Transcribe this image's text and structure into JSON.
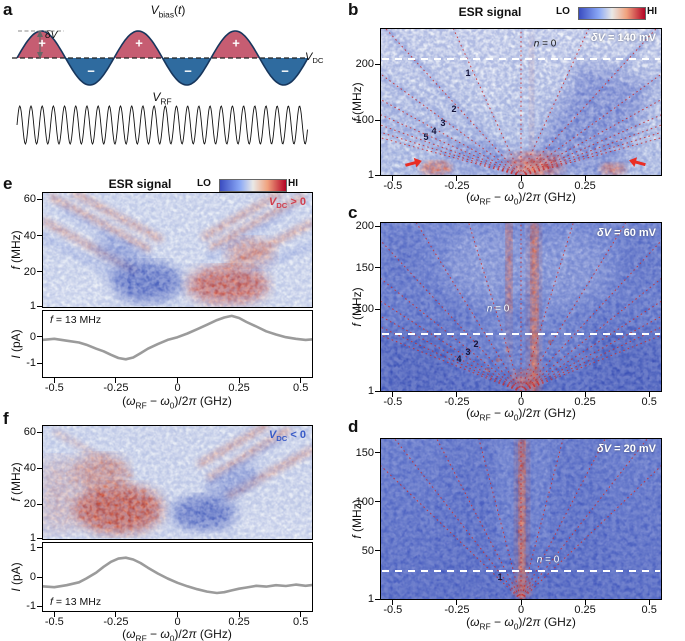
{
  "figure": {
    "type": "scientific-figure",
    "panels": [
      "a",
      "b",
      "c",
      "d",
      "e",
      "f"
    ]
  },
  "colors": {
    "colormap_lo": "#3a4cc0",
    "colormap_hi": "#b40426",
    "fan_line": "#cc2a2a",
    "vdc_positive_label": "#d04050",
    "vdc_negative_label": "#3a5cc8",
    "curve": "#9b9b9b",
    "wave_positive_fill": "#c65d72",
    "wave_negative_fill": "#2f6b9f"
  },
  "shared": {
    "esr_title": "ESR signal",
    "lo": "LO",
    "hi": "HI",
    "x_axis_label": [
      {
        "t": "("
      },
      {
        "t": "ω",
        "i": true
      },
      {
        "t": "RF",
        "s": true
      },
      {
        "t": " − "
      },
      {
        "t": "ω",
        "i": true
      },
      {
        "t": "0",
        "s": true
      },
      {
        "t": ")/2"
      },
      {
        "t": "π",
        "i": true
      },
      {
        "t": " (GHz)"
      }
    ],
    "f_axis_label": [
      {
        "t": "f",
        "i": true
      },
      {
        "t": " (MHz)"
      }
    ],
    "i_axis_label": [
      {
        "t": "I",
        "i": true
      },
      {
        "t": " (pA)"
      }
    ],
    "f13_label": [
      {
        "t": "f",
        "i": true
      },
      {
        "t": " = 13 MHz"
      }
    ]
  },
  "panel_a": {
    "letter": "a",
    "vbias_label": [
      {
        "t": "V",
        "i": true
      },
      {
        "t": "bias",
        "s": true
      },
      {
        "t": "("
      },
      {
        "t": "t",
        "i": true
      },
      {
        "t": ")"
      }
    ],
    "vdc_label": [
      {
        "t": "V",
        "i": true
      },
      {
        "t": "DC",
        "s": true
      }
    ],
    "vrf_label": [
      {
        "t": "V",
        "i": true
      },
      {
        "t": "RF",
        "s": true
      }
    ],
    "delta_v_label": [
      {
        "t": "δ",
        "i": true
      },
      {
        "t": "V",
        "i": true
      }
    ],
    "plus": "+",
    "minus": "−"
  },
  "panel_b": {
    "letter": "b",
    "delta_v_text": [
      {
        "t": "δ",
        "i": true
      },
      {
        "t": "V",
        "i": true
      },
      {
        "t": " = 140 mV"
      }
    ],
    "n0_label": [
      {
        "t": "n",
        "i": true
      },
      {
        "t": " = 0"
      }
    ],
    "fan_labels": [
      "1",
      "2",
      "3",
      "4",
      "5"
    ],
    "yticks": [
      "200",
      "100",
      "1"
    ],
    "xticks": [
      "-0.5",
      "-0.25",
      "0",
      "0.25"
    ],
    "chart_data": {
      "type": "heatmap",
      "x_axis": "(ωRF − ω0)/2π (GHz)",
      "x_range_ghz": [
        -0.55,
        0.55
      ],
      "y_axis": "f (MHz)",
      "f_range_mhz": [
        1,
        265
      ],
      "delta_v_mv": 140,
      "dashed_line_f_mhz": 210,
      "fan_n": [
        0,
        1,
        2,
        3,
        4,
        5,
        6,
        7,
        8
      ],
      "sidebands": "resonances at detuning = ±n·f (red dotted fan lines)",
      "features": "strong low-f red response spots near ±0.33 GHz marked by red arrows; red region near zero detuning; dark blue sideband fans on light background"
    }
  },
  "panel_c": {
    "letter": "c",
    "delta_v_text": [
      {
        "t": "δ",
        "i": true
      },
      {
        "t": "V",
        "i": true
      },
      {
        "t": " = 60 mV"
      }
    ],
    "n0_label": [
      {
        "t": "n",
        "i": true
      },
      {
        "t": " = 0"
      }
    ],
    "fan_labels": [
      "2",
      "3",
      "4"
    ],
    "yticks": [
      "200",
      "150",
      "100",
      "1"
    ],
    "xticks": [
      "-0.5",
      "-0.25",
      "0",
      "0.25",
      "0.5"
    ],
    "chart_data": {
      "type": "heatmap",
      "x_range_ghz": [
        -0.55,
        0.55
      ],
      "f_range_mhz": [
        1,
        205
      ],
      "delta_v_mv": 60,
      "dashed_line_f_mhz": 70,
      "fan_n": [
        0,
        1,
        2,
        3,
        4,
        5,
        6,
        7,
        8
      ],
      "sidebands": "resonances at detuning = ±n·f",
      "features": "bright red vertical streak just right of zero detuning over blue background; weaker streak left of zero; red spot at low f near zero"
    }
  },
  "panel_d": {
    "letter": "d",
    "delta_v_text": [
      {
        "t": "δ",
        "i": true
      },
      {
        "t": "V",
        "i": true
      },
      {
        "t": " = 20 mV"
      }
    ],
    "n0_label": [
      {
        "t": "n",
        "i": true
      },
      {
        "t": " = 0"
      }
    ],
    "fan_labels": [
      "1"
    ],
    "yticks": [
      "150",
      "100",
      "50",
      "1"
    ],
    "xticks": [
      "-0.5",
      "-0.25",
      "0",
      "0.25",
      "0.5"
    ],
    "chart_data": {
      "type": "heatmap",
      "x_range_ghz": [
        -0.55,
        0.55
      ],
      "f_range_mhz": [
        1,
        165
      ],
      "delta_v_mv": 20,
      "dashed_line_f_mhz": 30,
      "fan_n": [
        0,
        1,
        2,
        3,
        4
      ],
      "sidebands": "resonances at detuning = ±n·f",
      "features": "single narrow bright red vertical streak at zero detuning on blue background"
    }
  },
  "panel_e": {
    "letter": "e",
    "vdc_text": [
      {
        "t": "V",
        "i": true
      },
      {
        "t": "DC",
        "s": true
      },
      {
        "t": " > 0"
      }
    ],
    "yticks": [
      "60",
      "40",
      "20",
      "1"
    ],
    "chart_data": {
      "type": "heatmap",
      "x_range_ghz": [
        -0.55,
        0.55
      ],
      "f_range_mhz": [
        1,
        64
      ],
      "bias": "VDC > 0",
      "features": "large red lobe near +0.2 GHz at low f, dark blue dip near −0.15 GHz, tilted red/blue sideband stripes at high f"
    },
    "line_chart_data": {
      "type": "line",
      "f_mhz": 13,
      "ylim": [
        -1.55,
        1.0
      ],
      "yticks": [
        "0",
        "-1"
      ],
      "xticks": [
        "-0.5",
        "-0.25",
        "0",
        "0.25",
        "0.5"
      ],
      "x_ghz": [
        -0.55,
        -0.5,
        -0.45,
        -0.4,
        -0.37,
        -0.33,
        -0.3,
        -0.27,
        -0.24,
        -0.21,
        -0.18,
        -0.15,
        -0.12,
        -0.08,
        -0.04,
        0,
        0.04,
        0.08,
        0.12,
        0.16,
        0.19,
        0.22,
        0.25,
        0.28,
        0.32,
        0.36,
        0.4,
        0.44,
        0.48,
        0.52,
        0.55
      ],
      "i_pa": [
        -0.12,
        -0.08,
        -0.15,
        -0.22,
        -0.3,
        -0.45,
        -0.55,
        -0.68,
        -0.8,
        -0.85,
        -0.78,
        -0.62,
        -0.45,
        -0.28,
        -0.12,
        -0.02,
        0.12,
        0.28,
        0.45,
        0.62,
        0.72,
        0.78,
        0.7,
        0.55,
        0.38,
        0.2,
        0.08,
        -0.02,
        -0.08,
        -0.12,
        -0.1
      ]
    }
  },
  "panel_f": {
    "letter": "f",
    "vdc_text": [
      {
        "t": "V",
        "i": true
      },
      {
        "t": "DC",
        "s": true
      },
      {
        "t": " < 0"
      }
    ],
    "yticks": [
      "60",
      "40",
      "20",
      "1"
    ],
    "chart_data": {
      "type": "heatmap",
      "x_range_ghz": [
        -0.55,
        0.55
      ],
      "f_range_mhz": [
        1,
        64
      ],
      "bias": "VDC < 0",
      "features": "large red lobe near −0.25 GHz, dark blue dip near +0.1 GHz, tilted red stripes at high f on right side"
    },
    "line_chart_data": {
      "type": "line",
      "f_mhz": 13,
      "ylim": [
        -1.2,
        1.2
      ],
      "yticks": [
        "1",
        "0",
        "-1"
      ],
      "xticks": [
        "-0.5",
        "-0.25",
        "0",
        "0.25",
        "0.5"
      ],
      "x_ghz": [
        -0.55,
        -0.5,
        -0.45,
        -0.4,
        -0.37,
        -0.33,
        -0.3,
        -0.27,
        -0.24,
        -0.21,
        -0.18,
        -0.15,
        -0.12,
        -0.08,
        -0.04,
        0,
        0.04,
        0.08,
        0.12,
        0.16,
        0.19,
        0.22,
        0.25,
        0.28,
        0.32,
        0.36,
        0.4,
        0.44,
        0.48,
        0.52,
        0.55
      ],
      "i_pa": [
        -0.32,
        -0.35,
        -0.28,
        -0.18,
        -0.05,
        0.15,
        0.35,
        0.52,
        0.63,
        0.66,
        0.6,
        0.48,
        0.32,
        0.12,
        -0.05,
        -0.2,
        -0.32,
        -0.42,
        -0.5,
        -0.55,
        -0.52,
        -0.46,
        -0.4,
        -0.36,
        -0.3,
        -0.33,
        -0.28,
        -0.31,
        -0.26,
        -0.3,
        -0.27
      ]
    }
  }
}
